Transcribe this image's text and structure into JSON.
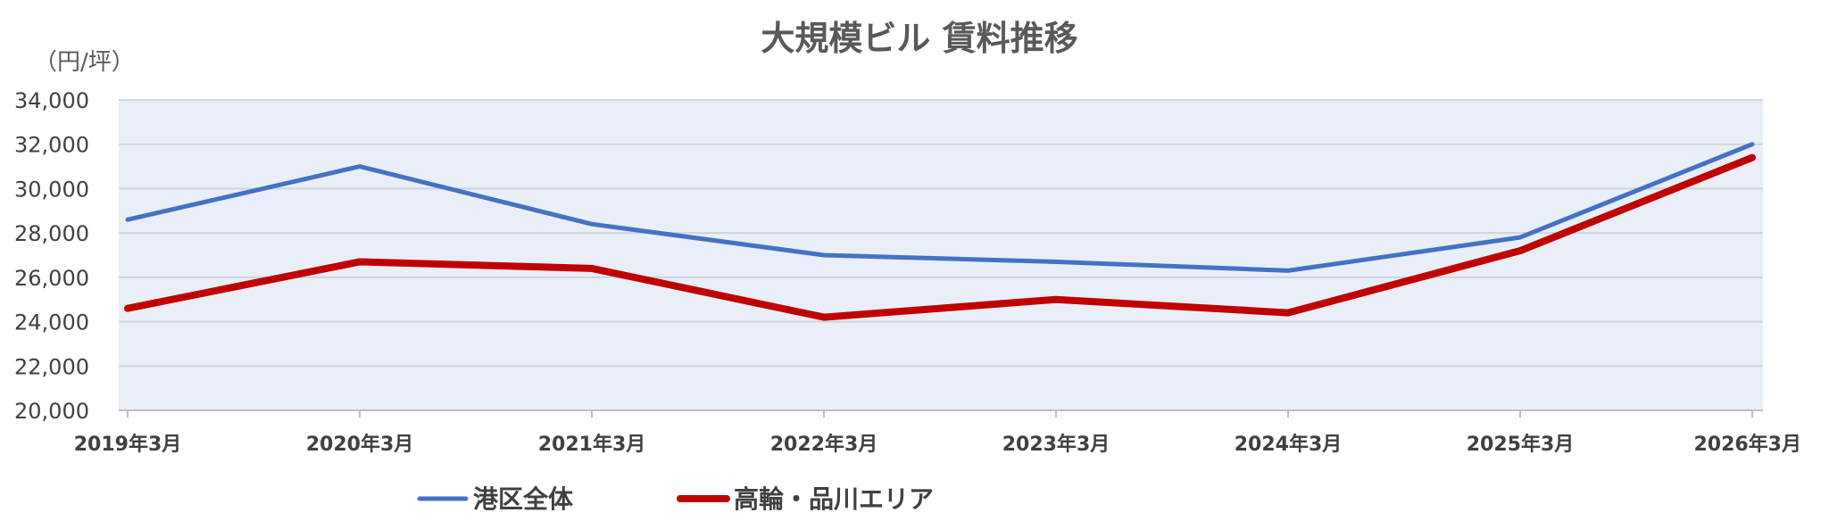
{
  "chart_data": {
    "type": "line",
    "title": "大規模ビル 賃料推移",
    "unit_label": "（円/坪）",
    "categories": [
      "2019年3月",
      "2020年3月",
      "2021年3月",
      "2022年3月",
      "2023年3月",
      "2024年3月",
      "2025年3月",
      "2026年3月"
    ],
    "ylim": [
      20000,
      34000
    ],
    "y_ticks": [
      "20,000",
      "22,000",
      "24,000",
      "26,000",
      "28,000",
      "30,000",
      "32,000",
      "34,000"
    ],
    "y_tick_values": [
      20000,
      22000,
      24000,
      26000,
      28000,
      30000,
      32000,
      34000
    ],
    "grid": true,
    "legend_position": "bottom",
    "series": [
      {
        "name": "港区全体",
        "color": "#4472C4",
        "values": [
          28600,
          31000,
          28400,
          27000,
          26700,
          26300,
          27800,
          32000
        ]
      },
      {
        "name": "高輪・品川エリア",
        "color": "#C00000",
        "values": [
          24600,
          26700,
          26400,
          24200,
          25000,
          24400,
          27200,
          31400
        ]
      }
    ],
    "plot_background": "#EAEFF7",
    "grid_color": "#D0D4DC"
  }
}
